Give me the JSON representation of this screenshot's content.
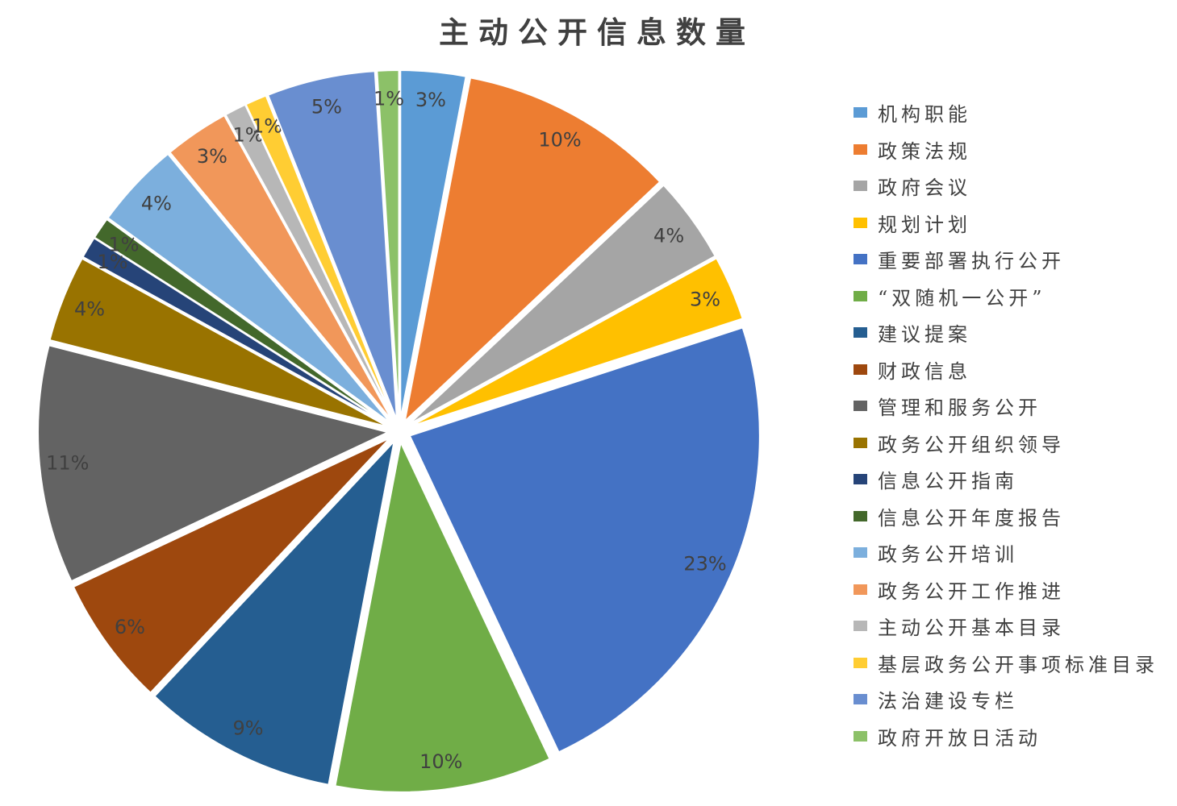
{
  "title": "主动公开信息数量",
  "colors": {
    "background": "#FFFFFF",
    "title_text": "#404040",
    "label_text": "#404040",
    "legend_text": "#404040"
  },
  "chart_data": {
    "type": "pie",
    "title": "主动公开信息数量",
    "categories": [
      "机构职能",
      "政策法规",
      "政府会议",
      "规划计划",
      "重要部署执行公开",
      "“双随机一公开”",
      "建议提案",
      "财政信息",
      "管理和服务公开",
      "政务公开组织领导",
      "信息公开指南",
      "信息公开年度报告",
      "政务公开培训",
      "政务公开工作推进",
      "主动公开基本目录",
      "基层政务公开事项标准目录",
      "法治建设专栏",
      "政府开放日活动"
    ],
    "values": [
      3,
      10,
      4,
      3,
      23,
      10,
      9,
      6,
      11,
      4,
      1,
      1,
      4,
      3,
      1,
      1,
      5,
      1
    ],
    "data_labels": [
      "3%",
      "10%",
      "4%",
      "3%",
      "23%",
      "10%",
      "9%",
      "6%",
      "11%",
      "4%",
      "1%",
      "1%",
      "4%",
      "3%",
      "1%",
      "1%",
      "5%",
      "1%"
    ],
    "slice_colors": [
      "#5B9BD5",
      "#ED7D31",
      "#A5A5A5",
      "#FFC000",
      "#4472C4",
      "#70AD47",
      "#255E91",
      "#9E480E",
      "#636363",
      "#997300",
      "#264478",
      "#43682B",
      "#7CAFDD",
      "#F1975A",
      "#B7B7B7",
      "#FFCD33",
      "#698ED0",
      "#8CC168"
    ],
    "total": 100,
    "start_angle_deg": 0,
    "direction": "clockwise",
    "exploded": true,
    "legend_position": "right",
    "grid": false
  }
}
